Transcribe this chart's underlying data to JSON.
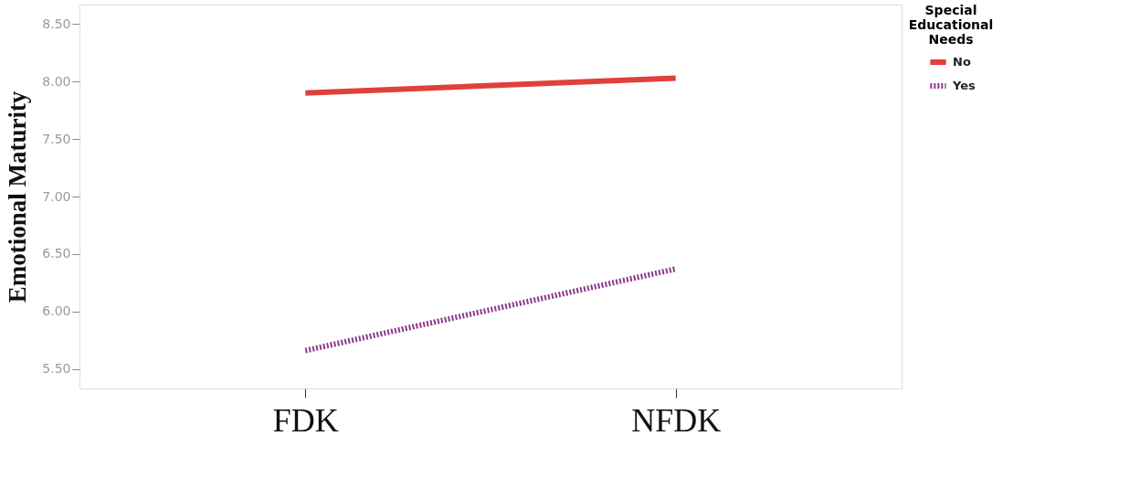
{
  "chart_data": {
    "type": "line",
    "ylabel": "Emotional Maturity",
    "legend_title": "Special Educational Needs",
    "categories": [
      "FDK",
      "NFDK"
    ],
    "series": [
      {
        "name": "No",
        "color": "#e0403c",
        "values": [
          7.9,
          8.03
        ],
        "line_style": "solid"
      },
      {
        "name": "Yes",
        "color": "#8e3a8e",
        "values": [
          5.66,
          6.37
        ],
        "line_style": "dotted"
      }
    ],
    "ylim": [
      5.33,
      8.67
    ],
    "yticks": [
      {
        "value": 5.5,
        "label": "5.50"
      },
      {
        "value": 6.0,
        "label": "6.00"
      },
      {
        "value": 6.5,
        "label": "6.50"
      },
      {
        "value": 7.0,
        "label": "7.00"
      },
      {
        "value": 7.5,
        "label": "7.50"
      },
      {
        "value": 8.0,
        "label": "8.00"
      },
      {
        "value": 8.5,
        "label": "8.50"
      }
    ],
    "grid": false,
    "legend": "top right"
  }
}
